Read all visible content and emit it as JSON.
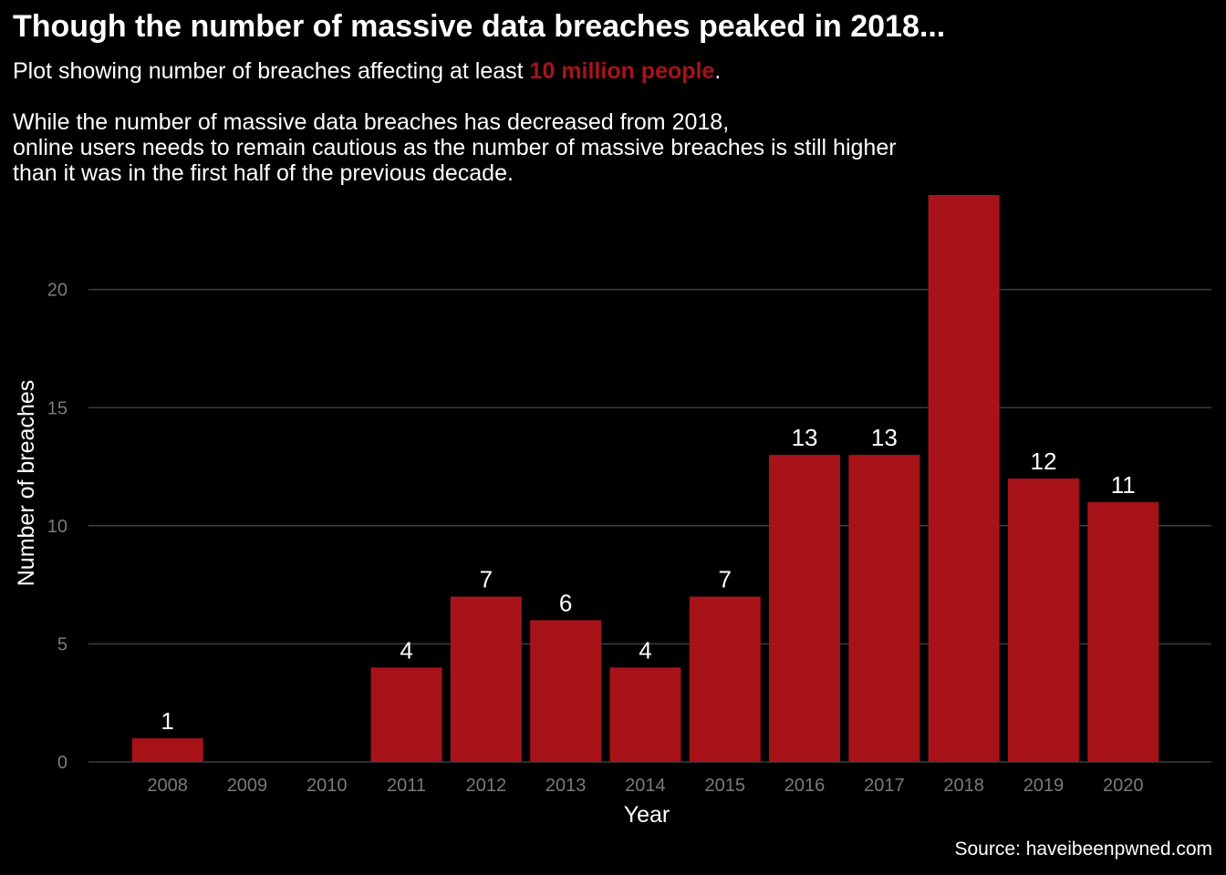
{
  "header": {
    "title": "Though the number of massive data breaches peaked in 2018...",
    "subtitle_prefix": "Plot showing number of breaches affecting at least ",
    "subtitle_highlight": "10 million people",
    "subtitle_suffix": ".",
    "description_lines": [
      "While the number of massive data breaches has decreased from 2018,",
      "online users needs to remain cautious as the number of massive breaches is still higher",
      "than it was in the first half of the previous decade."
    ],
    "caption": "Source: haveibeenpwned.com"
  },
  "colors": {
    "background": "#000000",
    "bar": "#a8131a",
    "highlight": "#a8131a",
    "grid": "#3a3a3a"
  },
  "chart_data": {
    "type": "bar",
    "categories": [
      "2008",
      "2009",
      "2010",
      "2011",
      "2012",
      "2013",
      "2014",
      "2015",
      "2016",
      "2017",
      "2018",
      "2019",
      "2020"
    ],
    "values": [
      1,
      0,
      0,
      4,
      7,
      6,
      4,
      7,
      13,
      13,
      24,
      12,
      11
    ],
    "data_labels": [
      "1",
      "",
      "",
      "4",
      "7",
      "6",
      "4",
      "7",
      "13",
      "13",
      "",
      "12",
      "11"
    ],
    "xlabel": "Year",
    "ylabel": "Number of breaches",
    "ylim": [
      0,
      24
    ],
    "yticks": [
      0,
      5,
      10,
      15,
      20
    ],
    "grid": "horizontal major",
    "legend": "none"
  }
}
